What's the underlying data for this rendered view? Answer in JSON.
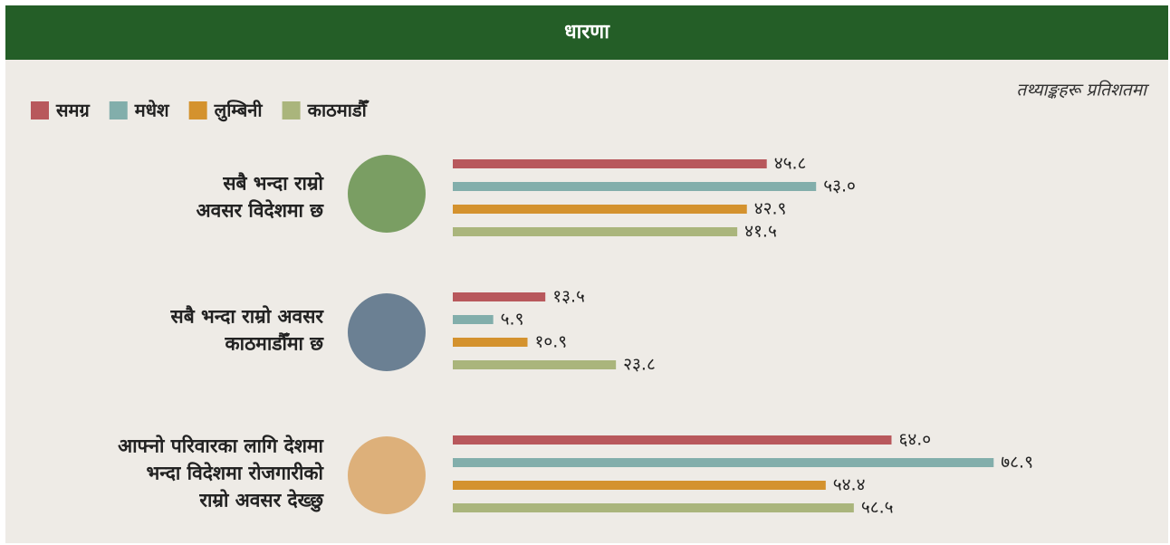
{
  "chart_data": {
    "type": "bar",
    "orientation": "horizontal",
    "title": "धारणा",
    "subtitle": "तथ्याङ्कहरू प्रतिशतमा",
    "categories": [
      [
        "सबै भन्दा राम्रो",
        "अवसर विदेशमा छ"
      ],
      [
        "सबै भन्दा राम्रो अवसर",
        "काठमाडौँमा छ"
      ],
      [
        "आफ्नो परिवारका लागि देशमा",
        "भन्दा विदेशमा रोजगारीको",
        "राम्रो अवसर देख्छु"
      ]
    ],
    "series": [
      {
        "name": "समग्र",
        "color": "#b8585c",
        "values": [
          45.8,
          13.5,
          64.0
        ],
        "value_labels": [
          "४५.८",
          "१३.५",
          "६४.०"
        ]
      },
      {
        "name": "मधेश",
        "color": "#82aeab",
        "values": [
          53.0,
          5.9,
          78.9
        ],
        "value_labels": [
          "५३.०",
          "५.९",
          "७८.९"
        ]
      },
      {
        "name": "लुम्बिनी",
        "color": "#d4922e",
        "values": [
          42.9,
          10.9,
          54.4
        ],
        "value_labels": [
          "४२.९",
          "१०.९",
          "५४.४"
        ]
      },
      {
        "name": "काठमाडौँ",
        "color": "#aab57c",
        "values": [
          41.5,
          23.8,
          58.5
        ],
        "value_labels": [
          "४१.५",
          "२३.८",
          "५८.५"
        ]
      }
    ],
    "legend": "top-left"
  }
}
